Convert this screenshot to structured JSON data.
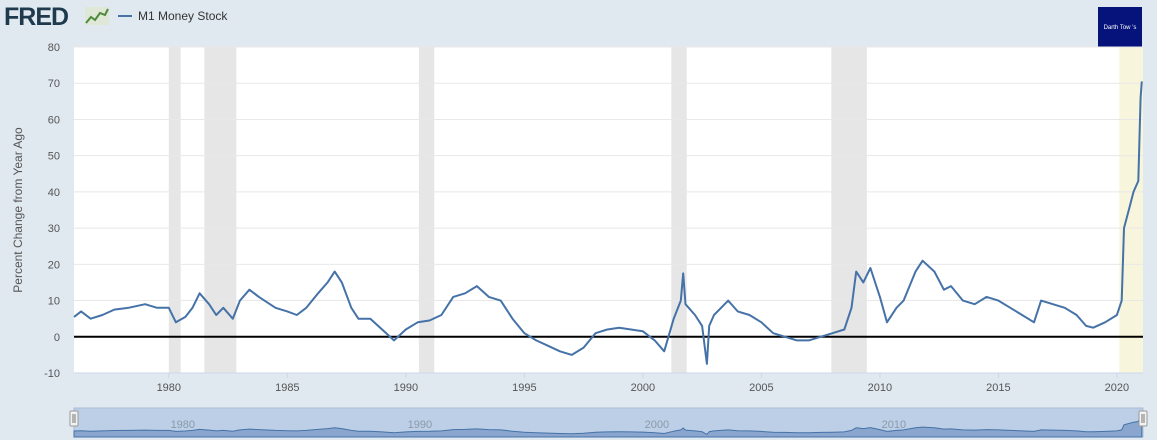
{
  "header": {
    "logo_text": "FRED",
    "logo_icon": "fred-chart-icon",
    "badge_text": "Darth Tow ’s"
  },
  "chart_data": {
    "type": "line",
    "legend": {
      "position": "top-left"
    },
    "ylabel": "Percent Change from Year Ago",
    "ylim": [
      -10,
      80
    ],
    "xlim": [
      1976.0,
      2021.1
    ],
    "yticks": [
      -10,
      0,
      10,
      20,
      30,
      40,
      50,
      60,
      70,
      80
    ],
    "xticks": [
      1980,
      1985,
      1990,
      1995,
      2000,
      2005,
      2010,
      2015,
      2020
    ],
    "grid": {
      "horizontal": true,
      "vertical": false
    },
    "zero_line": true,
    "recessions": [
      [
        1980.0,
        1980.5
      ],
      [
        1981.5,
        1982.85
      ],
      [
        1990.55,
        1991.2
      ],
      [
        2001.2,
        2001.85
      ],
      [
        2007.95,
        2009.45
      ]
    ],
    "highlight_band": [
      2020.1,
      2021.1
    ],
    "series": [
      {
        "name": "M1 Money Stock",
        "color": "#4572a7",
        "points": [
          [
            1976.0,
            5.5
          ],
          [
            1976.3,
            7.0
          ],
          [
            1976.7,
            5.0
          ],
          [
            1977.2,
            6.0
          ],
          [
            1977.7,
            7.5
          ],
          [
            1978.3,
            8.0
          ],
          [
            1979.0,
            9.0
          ],
          [
            1979.5,
            8.0
          ],
          [
            1980.0,
            8.0
          ],
          [
            1980.3,
            4.0
          ],
          [
            1980.7,
            5.5
          ],
          [
            1981.0,
            8.0
          ],
          [
            1981.3,
            12.0
          ],
          [
            1981.7,
            9.0
          ],
          [
            1982.0,
            6.0
          ],
          [
            1982.3,
            8.0
          ],
          [
            1982.7,
            5.0
          ],
          [
            1983.0,
            10.0
          ],
          [
            1983.4,
            13.0
          ],
          [
            1983.8,
            11.0
          ],
          [
            1984.5,
            8.0
          ],
          [
            1985.0,
            7.0
          ],
          [
            1985.4,
            6.0
          ],
          [
            1985.8,
            8.0
          ],
          [
            1986.3,
            12.0
          ],
          [
            1986.7,
            15.0
          ],
          [
            1987.0,
            18.0
          ],
          [
            1987.3,
            15.0
          ],
          [
            1987.7,
            8.0
          ],
          [
            1988.0,
            5.0
          ],
          [
            1988.5,
            5.0
          ],
          [
            1989.0,
            2.0
          ],
          [
            1989.5,
            -1.0
          ],
          [
            1990.0,
            2.0
          ],
          [
            1990.5,
            4.0
          ],
          [
            1991.0,
            4.5
          ],
          [
            1991.5,
            6.0
          ],
          [
            1992.0,
            11.0
          ],
          [
            1992.5,
            12.0
          ],
          [
            1993.0,
            14.0
          ],
          [
            1993.5,
            11.0
          ],
          [
            1994.0,
            10.0
          ],
          [
            1994.5,
            5.0
          ],
          [
            1995.0,
            1.0
          ],
          [
            1995.5,
            -1.0
          ],
          [
            1996.0,
            -2.5
          ],
          [
            1996.5,
            -4.0
          ],
          [
            1997.0,
            -5.0
          ],
          [
            1997.5,
            -3.0
          ],
          [
            1998.0,
            1.0
          ],
          [
            1998.5,
            2.0
          ],
          [
            1999.0,
            2.5
          ],
          [
            1999.5,
            2.0
          ],
          [
            2000.0,
            1.5
          ],
          [
            2000.5,
            -1.0
          ],
          [
            2000.9,
            -4.0
          ],
          [
            2001.3,
            5.0
          ],
          [
            2001.6,
            10.0
          ],
          [
            2001.7,
            17.5
          ],
          [
            2001.8,
            9.0
          ],
          [
            2002.2,
            6.0
          ],
          [
            2002.5,
            3.0
          ],
          [
            2002.7,
            -7.5
          ],
          [
            2002.8,
            3.0
          ],
          [
            2003.0,
            6.0
          ],
          [
            2003.3,
            8.0
          ],
          [
            2003.6,
            10.0
          ],
          [
            2004.0,
            7.0
          ],
          [
            2004.5,
            6.0
          ],
          [
            2005.0,
            4.0
          ],
          [
            2005.5,
            1.0
          ],
          [
            2006.0,
            0.0
          ],
          [
            2006.5,
            -1.0
          ],
          [
            2007.0,
            -1.0
          ],
          [
            2007.5,
            0.0
          ],
          [
            2008.0,
            1.0
          ],
          [
            2008.5,
            2.0
          ],
          [
            2008.8,
            8.0
          ],
          [
            2009.0,
            18.0
          ],
          [
            2009.3,
            15.0
          ],
          [
            2009.6,
            19.0
          ],
          [
            2010.0,
            11.0
          ],
          [
            2010.3,
            4.0
          ],
          [
            2010.7,
            8.0
          ],
          [
            2011.0,
            10.0
          ],
          [
            2011.5,
            18.0
          ],
          [
            2011.8,
            21.0
          ],
          [
            2012.3,
            18.0
          ],
          [
            2012.7,
            13.0
          ],
          [
            2013.0,
            14.0
          ],
          [
            2013.5,
            10.0
          ],
          [
            2014.0,
            9.0
          ],
          [
            2014.5,
            11.0
          ],
          [
            2015.0,
            10.0
          ],
          [
            2015.5,
            8.0
          ],
          [
            2016.0,
            6.0
          ],
          [
            2016.5,
            4.0
          ],
          [
            2016.8,
            10.0
          ],
          [
            2017.3,
            9.0
          ],
          [
            2017.8,
            8.0
          ],
          [
            2018.3,
            6.0
          ],
          [
            2018.7,
            3.0
          ],
          [
            2019.0,
            2.5
          ],
          [
            2019.5,
            4.0
          ],
          [
            2020.0,
            6.0
          ],
          [
            2020.2,
            10.0
          ],
          [
            2020.3,
            30.0
          ],
          [
            2020.5,
            35.0
          ],
          [
            2020.7,
            40.0
          ],
          [
            2020.9,
            43.0
          ],
          [
            2021.0,
            66.0
          ],
          [
            2021.05,
            70.5
          ]
        ]
      }
    ]
  },
  "navigator": {
    "labels": [
      "1980",
      "1990",
      "2000",
      "2010"
    ]
  }
}
